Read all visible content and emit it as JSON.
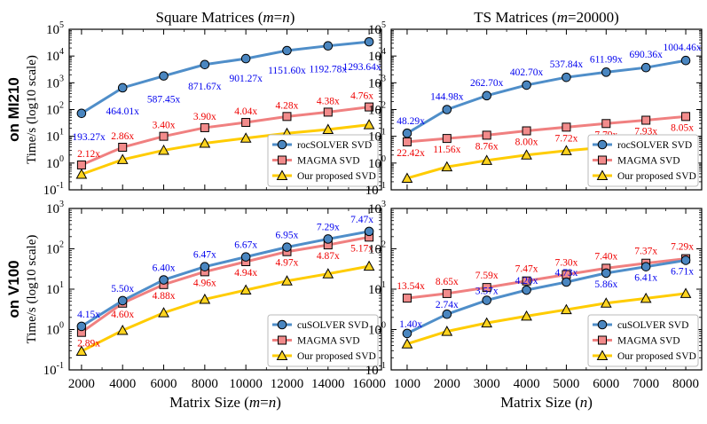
{
  "figure": {
    "col_titles": [
      {
        "prefix": "Square Matrices (",
        "var": "m",
        "mid": "=",
        "var2": "n",
        "suffix": ")"
      },
      {
        "prefix": "TS Matrices (",
        "var": "m",
        "mid": "=20000",
        "var2": "",
        "suffix": ")"
      }
    ],
    "row_titles": [
      "on MI210",
      "on V100"
    ],
    "ylabel": "Time/s (log10 scale)",
    "xlabels": [
      {
        "prefix": "Matrix Size (",
        "var": "m",
        "mid": "=",
        "var2": "n",
        "suffix": ")"
      },
      {
        "prefix": "Matrix Size (",
        "var": "n",
        "mid": "",
        "var2": "",
        "suffix": ")"
      }
    ]
  },
  "colors": {
    "blue": "#4a86c0",
    "red": "#f28b8b",
    "yellow": "#ffd41f",
    "blue_line": "#4f8ec9",
    "red_line": "#f08080",
    "yellow_line": "#ffcc00",
    "blue_text": "#0000ee",
    "red_text": "#ee0000"
  },
  "chart_data": [
    {
      "type": "line",
      "title": "Square Matrices (m=n)",
      "row": "on MI210",
      "ylabel": "Time/s (log10 scale)",
      "yscale": "log",
      "ylim": [
        0.1,
        100000
      ],
      "xlim": [
        1400,
        16600
      ],
      "x": [
        2000,
        4000,
        6000,
        8000,
        10000,
        12000,
        14000,
        16000
      ],
      "xticks": [
        "2000",
        "4000",
        "6000",
        "8000",
        "10000",
        "12000",
        "14000",
        "16000"
      ],
      "legend_position": "lower-right",
      "series": [
        {
          "name": "rocSOLVER SVD",
          "color": "blue",
          "marker": "circle",
          "values": [
            72,
            650,
            1800,
            4800,
            8000,
            16000,
            24000,
            34000
          ],
          "labels": [
            "193.27x",
            "464.01x",
            "587.45x",
            "871.67x",
            "901.27x",
            "1151.60x",
            "1192.78x",
            "1293.64x"
          ]
        },
        {
          "name": "MAGMA SVD",
          "color": "red",
          "marker": "square",
          "values": [
            0.85,
            3.9,
            10,
            21,
            33,
            55,
            80,
            125
          ],
          "labels": [
            "2.12x",
            "2.86x",
            "3.40x",
            "3.90x",
            "4.04x",
            "4.28x",
            "4.38x",
            "4.76x"
          ]
        },
        {
          "name": "Our proposed SVD",
          "color": "yellow",
          "marker": "triangle",
          "values": [
            0.38,
            1.35,
            3.0,
            5.5,
            8.5,
            13,
            18,
            27
          ],
          "labels": []
        }
      ]
    },
    {
      "type": "line",
      "title": "TS Matrices (m=20000)",
      "row": "on MI210",
      "yscale": "log",
      "ylim": [
        0.1,
        100000
      ],
      "xlim": [
        600,
        8400
      ],
      "x": [
        1000,
        2000,
        3000,
        4000,
        5000,
        6000,
        7000,
        8000
      ],
      "xticks": [
        "1000",
        "2000",
        "3000",
        "4000",
        "5000",
        "6000",
        "7000",
        "8000"
      ],
      "legend_position": "lower-right",
      "series": [
        {
          "name": "rocSOLVER SVD",
          "color": "blue",
          "marker": "circle",
          "values": [
            13,
            100,
            330,
            820,
            1600,
            2500,
            3700,
            6800
          ],
          "labels": [
            "48.29x",
            "144.98x",
            "262.70x",
            "402.70x",
            "537.84x",
            "611.99x",
            "690.36x",
            "1004.46x"
          ]
        },
        {
          "name": "MAGMA SVD",
          "color": "red",
          "marker": "square",
          "values": [
            6.2,
            8.3,
            11,
            16,
            22,
            30,
            40,
            55
          ],
          "labels": [
            "22.42x",
            "11.56x",
            "8.76x",
            "8.00x",
            "7.72x",
            "7.79x",
            "7.93x",
            "8.05x"
          ]
        },
        {
          "name": "Our proposed SVD",
          "color": "yellow",
          "marker": "triangle",
          "values": [
            0.27,
            0.72,
            1.25,
            2.0,
            2.9,
            3.9,
            5.1,
            6.8
          ],
          "labels": []
        }
      ]
    },
    {
      "type": "line",
      "title": "",
      "row": "on V100",
      "xlabel": "Matrix Size (m=n)",
      "ylabel": "Time/s (log10 scale)",
      "yscale": "log",
      "ylim": [
        0.1,
        1000
      ],
      "xlim": [
        1400,
        16600
      ],
      "x": [
        2000,
        4000,
        6000,
        8000,
        10000,
        12000,
        14000,
        16000
      ],
      "xticks": [
        "2000",
        "4000",
        "6000",
        "8000",
        "10000",
        "12000",
        "14000",
        "16000"
      ],
      "legend_position": "lower-right",
      "series": [
        {
          "name": "cuSOLVER SVD",
          "color": "blue",
          "marker": "circle",
          "values": [
            1.2,
            5.2,
            17,
            36,
            63,
            110,
            175,
            270
          ],
          "labels": [
            "4.15x",
            "5.50x",
            "6.40x",
            "6.47x",
            "6.67x",
            "6.95x",
            "7.29x",
            "7.47x"
          ]
        },
        {
          "name": "MAGMA SVD",
          "color": "red",
          "marker": "square",
          "values": [
            0.85,
            4.5,
            13,
            27,
            48,
            85,
            125,
            195
          ],
          "labels": [
            "2.89x",
            "4.60x",
            "4.88x",
            "4.96x",
            "4.94x",
            "4.97x",
            "4.87x",
            "5.17x"
          ]
        },
        {
          "name": "Our proposed SVD",
          "color": "yellow",
          "marker": "triangle",
          "values": [
            0.29,
            0.95,
            2.6,
            5.6,
            9.5,
            16,
            24,
            37
          ],
          "labels": []
        }
      ]
    },
    {
      "type": "line",
      "title": "",
      "row": "on V100",
      "xlabel": "Matrix Size (n)",
      "yscale": "log",
      "ylim": [
        0.1,
        1000
      ],
      "xlim": [
        600,
        8400
      ],
      "x": [
        1000,
        2000,
        3000,
        4000,
        5000,
        6000,
        7000,
        8000
      ],
      "xticks": [
        "1000",
        "2000",
        "3000",
        "4000",
        "5000",
        "6000",
        "7000",
        "8000"
      ],
      "legend_position": "lower-right",
      "series": [
        {
          "name": "cuSOLVER SVD",
          "color": "blue",
          "marker": "circle",
          "values": [
            0.8,
            2.4,
            5.3,
            9.5,
            15,
            25,
            36,
            52
          ],
          "labels": [
            "1.40x",
            "2.74x",
            "3.57x",
            "4.20x",
            "4.73x",
            "5.86x",
            "6.41x",
            "6.71x"
          ]
        },
        {
          "name": "MAGMA SVD",
          "color": "red",
          "marker": "square",
          "values": [
            6.0,
            7.8,
            11,
            16,
            23,
            33,
            44,
            57
          ],
          "labels": [
            "13.54x",
            "8.65x",
            "7.59x",
            "7.47x",
            "7.30x",
            "7.40x",
            "7.37x",
            "7.29x"
          ]
        },
        {
          "name": "Our proposed SVD",
          "color": "yellow",
          "marker": "triangle",
          "values": [
            0.44,
            0.9,
            1.45,
            2.15,
            3.1,
            4.5,
            5.9,
            7.8
          ],
          "labels": []
        }
      ]
    }
  ]
}
